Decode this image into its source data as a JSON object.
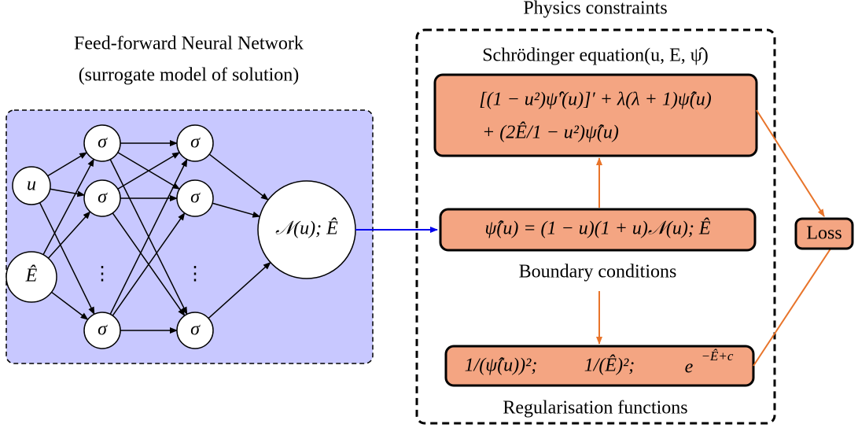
{
  "physics": {
    "title": "Physics constraints",
    "equation_label": "Schrödinger equation(u, E, ψ̂)",
    "equation_lines": [
      "[(1 − u²)ψ̂′(u)]′ + λ(λ + 1)ψ̂(u)",
      "+ (2Ê/1 − u²)ψ̂(u)"
    ],
    "boundary_formula": "ψ̂(u) = (1 − u)(1 + u)𝒩(u); Ê",
    "boundary_label": "Boundary conditions",
    "regularisation_terms": [
      "1/(ψ̂(u))²;",
      "1/(Ê)²;"
    ],
    "regularisation_exp_base": "e",
    "regularisation_exp_power": "−Ê+c",
    "regularisation_label": "Regularisation functions"
  },
  "network": {
    "title_lines": [
      "Feed-forward Neural Network",
      "(surrogate model of solution)"
    ],
    "inputs": [
      "u",
      "Ê"
    ],
    "hidden_layer_1": [
      "σ",
      "σ",
      "σ"
    ],
    "hidden_layer_2": [
      "σ",
      "σ",
      "σ"
    ],
    "ellipsis": "⋮",
    "output": "𝒩(u); Ê"
  },
  "loss": "Loss"
}
